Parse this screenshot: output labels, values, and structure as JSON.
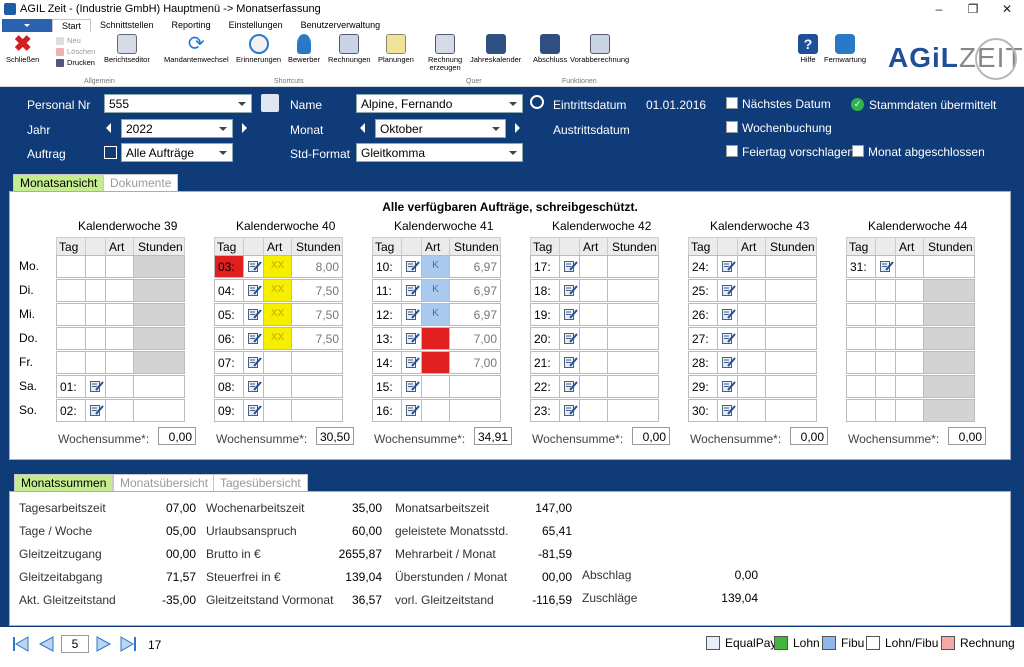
{
  "window": {
    "title": "AGIL Zeit - (Industrie GmbH) Hauptmenü -> Monatserfassung"
  },
  "ribbon_tabs": [
    "Start",
    "Schnittstellen",
    "Reporting",
    "Einstellungen",
    "Benutzerverwaltung"
  ],
  "ribbon": {
    "schliessen": "Schließen",
    "neu": "Neu",
    "loeschen": "Löschen",
    "drucken": "Drucken",
    "berichtseditor": "Berichtseditor",
    "group_allgemein": "Allgemein",
    "mandantenwechsel": "Mandantenwechsel",
    "erinnerungen": "Erinnerungen",
    "bewerber": "Bewerber",
    "rechnungen": "Rechnungen",
    "planungen": "Planungen",
    "group_shortcuts": "Shortcuts",
    "rechnung_erzeugen_1": "Rechnung",
    "rechnung_erzeugen_2": "erzeugen",
    "jahreskalender": "Jahreskalender",
    "group_quer": "Quer",
    "abschluss": "Abschluss",
    "vorabberechnung": "Vorabberechnung",
    "group_funktionen": "Funktionen",
    "hilfe": "Hilfe",
    "fernwartung": "Fernwartung",
    "logo_agil": "AGiL",
    "logo_zeit": "ZEIT"
  },
  "header": {
    "personal_nr_label": "Personal Nr",
    "personal_nr": "555",
    "name_label": "Name",
    "name": "Alpine, Fernando",
    "eintritt_label": "Eintrittsdatum",
    "eintritt": "01.01.2016",
    "austritt_label": "Austrittsdatum",
    "jahr_label": "Jahr",
    "jahr": "2022",
    "monat_label": "Monat",
    "monat": "Oktober",
    "auftrag_label": "Auftrag",
    "auftrag": "Alle Aufträge",
    "stdformat_label": "Std-Format",
    "stdformat": "Gleitkomma",
    "naechstes_datum": "Nächstes Datum",
    "wochenbuchung": "Wochenbuchung",
    "feiertag": "Feiertag vorschlagen",
    "monat_abgeschlossen": "Monat abgeschlossen",
    "stammdaten": "Stammdaten übermittelt"
  },
  "view_tabs": {
    "monatsansicht": "Monatsansicht",
    "dokumente": "Dokumente"
  },
  "notice": "Alle verfügbaren Aufträge, schreibgeschützt.",
  "day_labels": [
    "Mo.",
    "Di.",
    "Mi.",
    "Do.",
    "Fr.",
    "Sa.",
    "So."
  ],
  "col_headers": {
    "tag": "Tag",
    "art": "Art",
    "stunden": "Stunden"
  },
  "wochensumme_label": "Wochensumme*:",
  "weeks": [
    {
      "title": "Kalenderwoche  39",
      "sum": "0,00",
      "rows": [
        {
          "tag": "",
          "pen": false,
          "art": "",
          "artColor": "",
          "std": "",
          "gray": true
        },
        {
          "tag": "",
          "pen": false,
          "art": "",
          "artColor": "",
          "std": "",
          "gray": true
        },
        {
          "tag": "",
          "pen": false,
          "art": "",
          "artColor": "",
          "std": "",
          "gray": true
        },
        {
          "tag": "",
          "pen": false,
          "art": "",
          "artColor": "",
          "std": "",
          "gray": true
        },
        {
          "tag": "",
          "pen": false,
          "art": "",
          "artColor": "",
          "std": "",
          "gray": true
        },
        {
          "tag": "01:",
          "pen": true,
          "art": "",
          "artColor": "",
          "std": "",
          "gray": false
        },
        {
          "tag": "02:",
          "pen": true,
          "art": "",
          "artColor": "",
          "std": "",
          "gray": false
        }
      ]
    },
    {
      "title": "Kalenderwoche  40",
      "sum": "30,50",
      "rows": [
        {
          "tag": "03:",
          "tagColor": "red",
          "pen": true,
          "art": "XX",
          "artColor": "yellow",
          "std": "8,00",
          "gray": false
        },
        {
          "tag": "04:",
          "pen": true,
          "art": "XX",
          "artColor": "yellow",
          "std": "7,50",
          "gray": false
        },
        {
          "tag": "05:",
          "pen": true,
          "art": "XX",
          "artColor": "yellow",
          "std": "7,50",
          "gray": false
        },
        {
          "tag": "06:",
          "pen": true,
          "art": "XX",
          "artColor": "yellow",
          "std": "7,50",
          "gray": false
        },
        {
          "tag": "07:",
          "pen": true,
          "art": "",
          "artColor": "",
          "std": "",
          "gray": false
        },
        {
          "tag": "08:",
          "pen": true,
          "art": "",
          "artColor": "",
          "std": "",
          "gray": false
        },
        {
          "tag": "09:",
          "pen": true,
          "art": "",
          "artColor": "",
          "std": "",
          "gray": false
        }
      ]
    },
    {
      "title": "Kalenderwoche  41",
      "sum": "34,91",
      "rows": [
        {
          "tag": "10:",
          "pen": true,
          "art": "K",
          "artColor": "blue",
          "std": "6,97",
          "gray": false
        },
        {
          "tag": "11:",
          "pen": true,
          "art": "K",
          "artColor": "blue",
          "std": "6,97",
          "gray": false
        },
        {
          "tag": "12:",
          "pen": true,
          "art": "K",
          "artColor": "blue",
          "std": "6,97",
          "gray": false
        },
        {
          "tag": "13:",
          "pen": true,
          "art": "",
          "artColor": "red",
          "std": "7,00",
          "gray": false
        },
        {
          "tag": "14:",
          "pen": true,
          "art": "",
          "artColor": "red",
          "std": "7,00",
          "gray": false
        },
        {
          "tag": "15:",
          "pen": true,
          "art": "",
          "artColor": "",
          "std": "",
          "gray": false
        },
        {
          "tag": "16:",
          "pen": true,
          "art": "",
          "artColor": "",
          "std": "",
          "gray": false
        }
      ]
    },
    {
      "title": "Kalenderwoche  42",
      "sum": "0,00",
      "rows": [
        {
          "tag": "17:",
          "pen": true,
          "art": "",
          "artColor": "",
          "std": "",
          "gray": false
        },
        {
          "tag": "18:",
          "pen": true,
          "art": "",
          "artColor": "",
          "std": "",
          "gray": false
        },
        {
          "tag": "19:",
          "pen": true,
          "art": "",
          "artColor": "",
          "std": "",
          "gray": false
        },
        {
          "tag": "20:",
          "pen": true,
          "art": "",
          "artColor": "",
          "std": "",
          "gray": false
        },
        {
          "tag": "21:",
          "pen": true,
          "art": "",
          "artColor": "",
          "std": "",
          "gray": false
        },
        {
          "tag": "22:",
          "pen": true,
          "art": "",
          "artColor": "",
          "std": "",
          "gray": false
        },
        {
          "tag": "23:",
          "pen": true,
          "art": "",
          "artColor": "",
          "std": "",
          "gray": false
        }
      ]
    },
    {
      "title": "Kalenderwoche  43",
      "sum": "0,00",
      "rows": [
        {
          "tag": "24:",
          "pen": true,
          "art": "",
          "artColor": "",
          "std": "",
          "gray": false
        },
        {
          "tag": "25:",
          "pen": true,
          "art": "",
          "artColor": "",
          "std": "",
          "gray": false
        },
        {
          "tag": "26:",
          "pen": true,
          "art": "",
          "artColor": "",
          "std": "",
          "gray": false
        },
        {
          "tag": "27:",
          "pen": true,
          "art": "",
          "artColor": "",
          "std": "",
          "gray": false
        },
        {
          "tag": "28:",
          "pen": true,
          "art": "",
          "artColor": "",
          "std": "",
          "gray": false
        },
        {
          "tag": "29:",
          "pen": true,
          "art": "",
          "artColor": "",
          "std": "",
          "gray": false
        },
        {
          "tag": "30:",
          "pen": true,
          "art": "",
          "artColor": "",
          "std": "",
          "gray": false
        }
      ]
    },
    {
      "title": "Kalenderwoche  44",
      "sum": "0,00",
      "rows": [
        {
          "tag": "31:",
          "pen": true,
          "art": "",
          "artColor": "",
          "std": "",
          "gray": false
        },
        {
          "tag": "",
          "pen": false,
          "art": "",
          "artColor": "",
          "std": "",
          "gray": true
        },
        {
          "tag": "",
          "pen": false,
          "art": "",
          "artColor": "",
          "std": "",
          "gray": true
        },
        {
          "tag": "",
          "pen": false,
          "art": "",
          "artColor": "",
          "std": "",
          "gray": true
        },
        {
          "tag": "",
          "pen": false,
          "art": "",
          "artColor": "",
          "std": "",
          "gray": true
        },
        {
          "tag": "",
          "pen": false,
          "art": "",
          "artColor": "",
          "std": "",
          "gray": true
        },
        {
          "tag": "",
          "pen": false,
          "art": "",
          "artColor": "",
          "std": "",
          "gray": true
        }
      ]
    }
  ],
  "summary_tabs": {
    "monatssummen": "Monatssummen",
    "monatsuebersicht": "Monatsübersicht",
    "tagesuebersicht": "Tagesübersicht"
  },
  "summary": {
    "col1": [
      {
        "label": "Tagesarbeitszeit",
        "value": "07,00"
      },
      {
        "label": "Tage / Woche",
        "value": "05,00"
      },
      {
        "label": "Gleitzeitzugang",
        "value": "00,00"
      },
      {
        "label": "Gleitzeitabgang",
        "value": "71,57"
      },
      {
        "label": "Akt. Gleitzeitstand",
        "value": "-35,00"
      }
    ],
    "col2": [
      {
        "label": "Wochenarbeitszeit",
        "value": "35,00"
      },
      {
        "label": "Urlaubsanspruch",
        "value": "60,00"
      },
      {
        "label": "Brutto in €",
        "value": "2655,87"
      },
      {
        "label": "Steuerfrei in €",
        "value": "139,04"
      },
      {
        "label": "Gleitzeitstand Vormonat",
        "value": "36,57"
      }
    ],
    "col3": [
      {
        "label": "Monatsarbeitszeit",
        "value": "147,00"
      },
      {
        "label": "geleistete Monatsstd.",
        "value": "65,41"
      },
      {
        "label": "Mehrarbeit / Monat",
        "value": "-81,59"
      },
      {
        "label": "Überstunden / Monat",
        "value": "00,00"
      },
      {
        "label": "vorl. Gleitzeitstand",
        "value": "-116,59"
      }
    ],
    "col4": [
      {
        "label": "Abschlag",
        "value": "0,00"
      },
      {
        "label": "Zuschläge",
        "value": "139,04"
      }
    ]
  },
  "footer": {
    "page": "5",
    "total": "17",
    "legend": [
      {
        "label": "EqualPay",
        "color": "#e8eef8"
      },
      {
        "label": "Lohn",
        "color": "#43b53a"
      },
      {
        "label": "Fibu",
        "color": "#8fb7ea"
      },
      {
        "label": "Lohn/Fibu",
        "color": "#ffffff"
      },
      {
        "label": "Rechnung",
        "color": "#f4a8a8"
      }
    ]
  },
  "colors": {
    "red": "#e02020",
    "yellow": "#f6f000",
    "blue": "#a9c9ef",
    "gray": "#d3d3d3",
    "header_bg": "#0f3b78",
    "tab_active": "#c5ed90"
  }
}
